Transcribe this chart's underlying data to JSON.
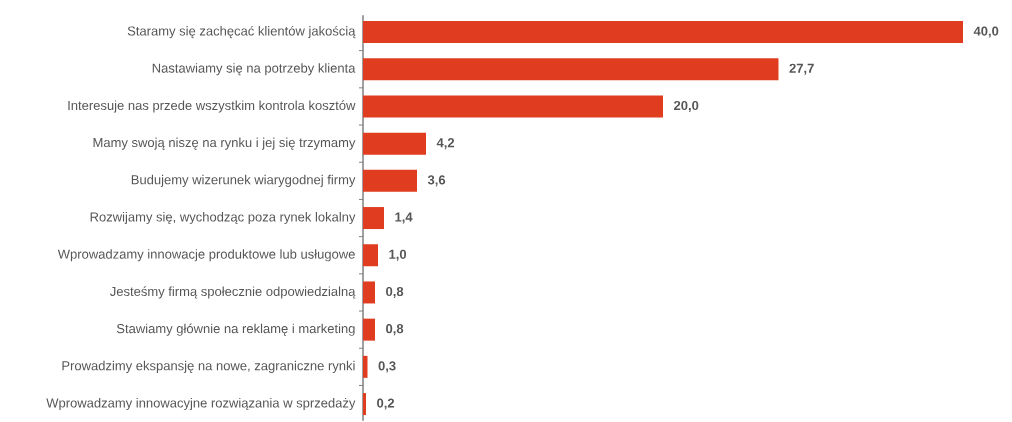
{
  "chart_data": {
    "type": "bar",
    "orientation": "horizontal",
    "categories": [
      "Staramy się zachęcać klientów jakością",
      "Nastawiamy się na potrzeby klienta",
      "Interesuje nas przede wszystkim kontrola kosztów",
      "Mamy swoją niszę na rynku i jej się trzymamy",
      "Budujemy wizerunek wiarygodnej firmy",
      "Rozwijamy się, wychodząc poza rynek lokalny",
      "Wprowadzamy innowacje produktowe lub usługowe",
      "Jesteśmy firmą społecznie odpowiedzialną",
      "Stawiamy głównie na reklamę i marketing",
      "Prowadzimy ekspansję na nowe, zagraniczne rynki",
      "Wprowadzamy innowacyjne rozwiązania w sprzedaży"
    ],
    "values": [
      40.0,
      27.7,
      20.0,
      4.2,
      3.6,
      1.4,
      1.0,
      0.8,
      0.8,
      0.3,
      0.2
    ],
    "value_labels": [
      "40,0",
      "27,7",
      "20,0",
      "4,2",
      "3,6",
      "1,4",
      "1,0",
      "0,8",
      "0,8",
      "0,3",
      "0,2"
    ],
    "color": "#e03c1f"
  }
}
